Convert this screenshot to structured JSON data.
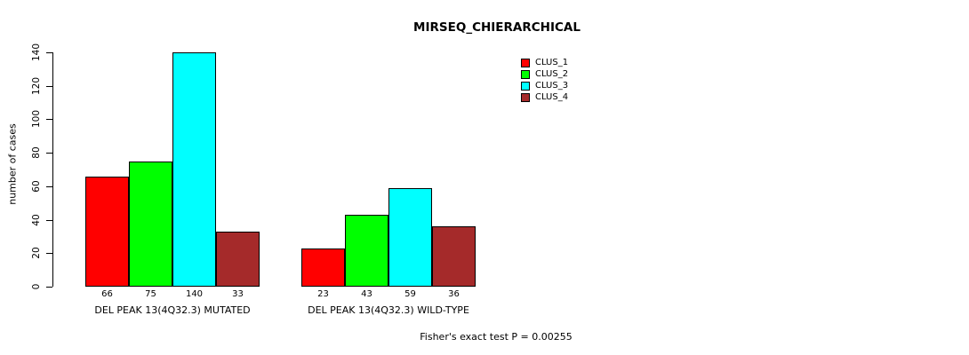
{
  "title": "MIRSEQ_CHIERARCHICAL",
  "annotation": "Fisher's exact test P = 0.00255",
  "chart_data": {
    "type": "bar",
    "title": "MIRSEQ_CHIERARCHICAL",
    "xlabel": "",
    "ylabel": "number of cases",
    "ylim": [
      0,
      140
    ],
    "yticks": [
      0,
      20,
      40,
      60,
      80,
      100,
      120,
      140
    ],
    "grid": false,
    "legend_position": "top-right",
    "categories": [
      "DEL PEAK 13(4Q32.3) MUTATED",
      "DEL PEAK 13(4Q32.3) WILD-TYPE"
    ],
    "series": [
      {
        "name": "CLUS_1",
        "color": "#FF0000",
        "values": [
          66,
          23
        ]
      },
      {
        "name": "CLUS_2",
        "color": "#00FF00",
        "values": [
          75,
          43
        ]
      },
      {
        "name": "CLUS_3",
        "color": "#00FFFF",
        "values": [
          140,
          59
        ]
      },
      {
        "name": "CLUS_4",
        "color": "#A52A2A",
        "values": [
          33,
          36
        ]
      }
    ],
    "bar_value_labels": [
      [
        66,
        75,
        140,
        33
      ],
      [
        23,
        43,
        59,
        36
      ]
    ],
    "annotation": "Fisher's exact test P = 0.00255"
  }
}
